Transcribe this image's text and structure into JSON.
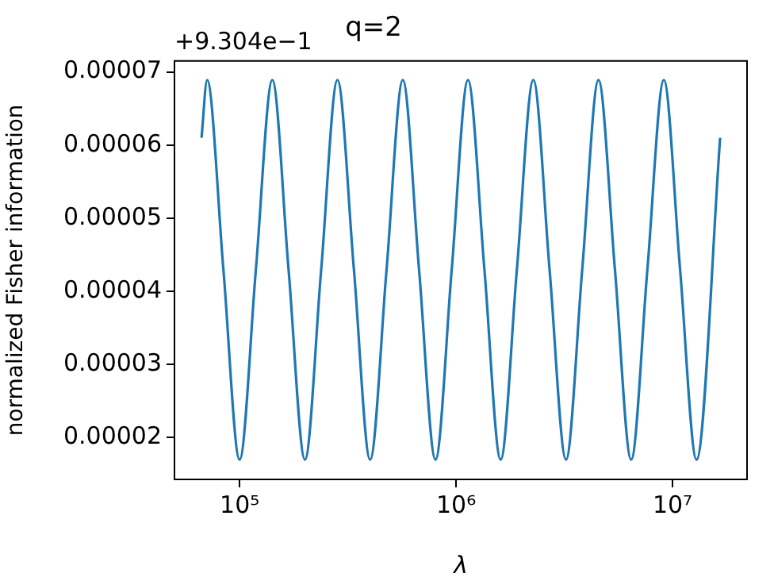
{
  "chart_data": {
    "type": "line",
    "title": "q=2",
    "xlabel": "λ",
    "ylabel": "normalized Fisher information",
    "annotations": [
      "+9.304e−1"
    ],
    "x": [
      66680,
      70790,
      84140,
      100000,
      118900,
      141600,
      168300,
      200400,
      238200,
      283100,
      337300,
      400900,
      477500,
      567500,
      674500,
      803500,
      955000,
      1135000,
      1352000,
      1607000,
      1910000,
      2275000,
      2704000,
      3221000,
      3828000,
      4550000,
      5420000,
      6442000,
      7656000,
      9120000,
      10840000,
      12910000,
      16600000
    ],
    "series": [
      {
        "color": "#1f77b4",
        "values": [
          6.1e-05,
          6.89e-05,
          4.3e-05,
          1.7e-05,
          4.3e-05,
          6.89e-05,
          4.3e-05,
          1.7e-05,
          4.3e-05,
          6.89e-05,
          4.3e-05,
          1.7e-05,
          4.3e-05,
          6.89e-05,
          4.3e-05,
          1.7e-05,
          4.3e-05,
          6.89e-05,
          4.3e-05,
          1.7e-05,
          4.3e-05,
          6.89e-05,
          4.3e-05,
          1.7e-05,
          4.3e-05,
          6.89e-05,
          4.3e-05,
          1.7e-05,
          4.3e-05,
          6.89e-05,
          4.3e-05,
          1.7e-05,
          6.1e-05
        ]
      }
    ],
    "log": "x",
    "xlim": [
      50000,
      22100000
    ],
    "xticks": [
      {
        "value": 100000,
        "label": "10⁵"
      },
      {
        "value": 1000000,
        "label": "10⁶"
      },
      {
        "value": 10000000,
        "label": "10⁷"
      }
    ],
    "ylim": [
      1.43e-05,
      7.15e-05
    ],
    "yticks": [
      {
        "value": 2e-05,
        "label": "0.00002"
      },
      {
        "value": 3e-05,
        "label": "0.00003"
      },
      {
        "value": 4e-05,
        "label": "0.00004"
      },
      {
        "value": 5e-05,
        "label": "0.00005"
      },
      {
        "value": 6e-05,
        "label": "0.00006"
      },
      {
        "value": 7e-05,
        "label": "0.00007"
      }
    ],
    "grid": false,
    "legend": false,
    "marker": "none",
    "line_style": "solid"
  }
}
